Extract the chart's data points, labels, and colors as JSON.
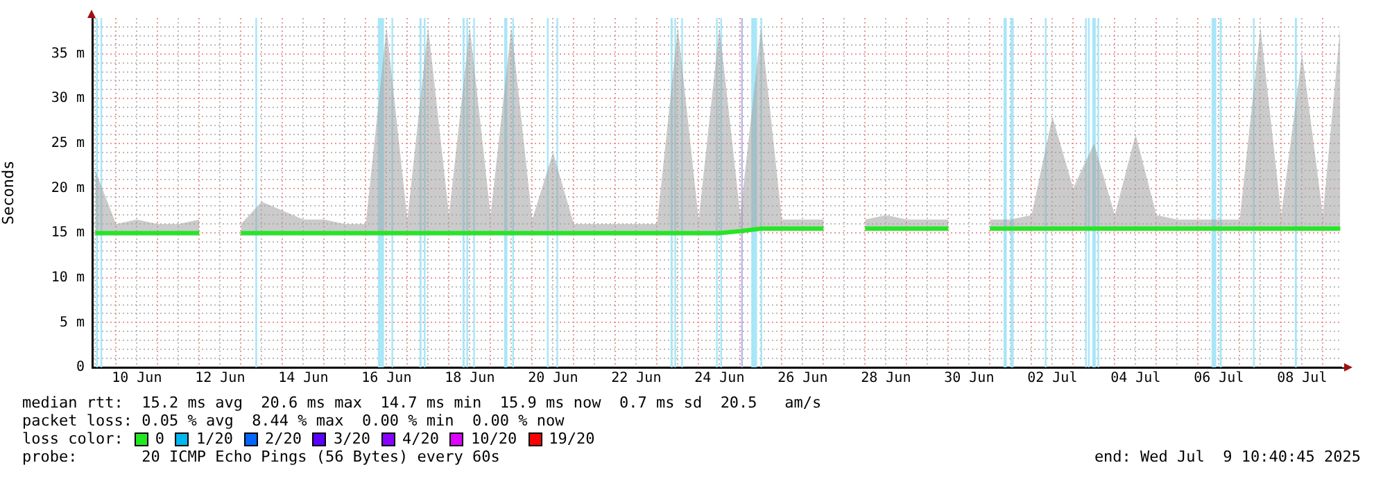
{
  "chart_data": {
    "type": "line",
    "ylabel": "Seconds",
    "legend_title": "loss color:",
    "legend": "bottom",
    "grid": true,
    "marker": "none",
    "line_style": "solid",
    "x": [
      "2025-06-09T12:00",
      "2025-06-10T00:00",
      "2025-06-10T12:00",
      "2025-06-11T00:00",
      "2025-06-11T12:00",
      "2025-06-12T00:00",
      "2025-06-12T12:00",
      "2025-06-13T00:00",
      "2025-06-13T12:00",
      "2025-06-14T00:00",
      "2025-06-14T12:00",
      "2025-06-15T00:00",
      "2025-06-15T12:00",
      "2025-06-16T00:00",
      "2025-06-16T12:00",
      "2025-06-17T00:00",
      "2025-06-17T12:00",
      "2025-06-18T00:00",
      "2025-06-18T12:00",
      "2025-06-19T00:00",
      "2025-06-19T12:00",
      "2025-06-20T00:00",
      "2025-06-20T12:00",
      "2025-06-21T00:00",
      "2025-06-21T12:00",
      "2025-06-22T00:00",
      "2025-06-22T12:00",
      "2025-06-23T00:00",
      "2025-06-23T12:00",
      "2025-06-24T00:00",
      "2025-06-24T12:00",
      "2025-06-25T00:00",
      "2025-06-25T12:00",
      "2025-06-26T00:00",
      "2025-06-26T12:00",
      "2025-06-27T00:00",
      "2025-06-27T12:00",
      "2025-06-28T00:00",
      "2025-06-28T12:00",
      "2025-06-29T00:00",
      "2025-06-29T12:00",
      "2025-06-30T00:00",
      "2025-06-30T12:00",
      "2025-07-01T00:00",
      "2025-07-01T12:00",
      "2025-07-02T00:00",
      "2025-07-02T12:00",
      "2025-07-03T00:00",
      "2025-07-03T12:00",
      "2025-07-04T00:00",
      "2025-07-04T12:00",
      "2025-07-05T00:00",
      "2025-07-05T12:00",
      "2025-07-06T00:00",
      "2025-07-06T12:00",
      "2025-07-07T00:00",
      "2025-07-07T12:00",
      "2025-07-08T00:00",
      "2025-07-08T12:00",
      "2025-07-09T00:00",
      "2025-07-09T10:00"
    ],
    "series": [
      {
        "name": "0",
        "color": "#22e822",
        "values": [
          15.0,
          15.0,
          15.0,
          15.0,
          15.0,
          15.0,
          null,
          15.0,
          15.0,
          15.0,
          15.0,
          15.0,
          15.0,
          15.0,
          15.0,
          15.0,
          15.0,
          15.0,
          15.0,
          15.0,
          15.0,
          15.0,
          15.0,
          15.0,
          15.0,
          15.0,
          15.0,
          15.0,
          15.0,
          15.0,
          15.0,
          15.2,
          15.5,
          15.5,
          15.5,
          15.5,
          null,
          15.5,
          15.5,
          15.5,
          15.5,
          15.5,
          null,
          15.5,
          15.5,
          15.5,
          15.5,
          15.5,
          15.5,
          15.5,
          15.5,
          15.5,
          15.5,
          15.5,
          15.5,
          15.5,
          15.5,
          15.5,
          15.5,
          15.5,
          15.5
        ],
        "lower": [
          14.7,
          14.7,
          14.7,
          14.7,
          14.7,
          14.7,
          null,
          14.7,
          14.7,
          14.7,
          14.7,
          14.7,
          14.7,
          14.7,
          14.7,
          14.7,
          14.7,
          14.7,
          14.7,
          14.7,
          14.7,
          14.7,
          14.7,
          14.7,
          14.7,
          14.7,
          14.7,
          14.7,
          14.7,
          14.7,
          14.7,
          15.0,
          15.2,
          15.2,
          15.2,
          15.2,
          null,
          15.2,
          15.2,
          15.2,
          15.2,
          15.2,
          null,
          15.2,
          15.2,
          15.2,
          15.2,
          15.2,
          15.2,
          15.2,
          15.2,
          15.2,
          15.2,
          15.2,
          15.2,
          15.2,
          15.2,
          15.2,
          15.2,
          15.2,
          15.2
        ],
        "upper": [
          22,
          16,
          16.5,
          16,
          16,
          16.5,
          null,
          16,
          18.5,
          17.5,
          16.5,
          16.5,
          16,
          16,
          38,
          16.5,
          38,
          17,
          38,
          17,
          38,
          16.5,
          24,
          16,
          16,
          16,
          16,
          16,
          38,
          16.5,
          38,
          17,
          38,
          16.5,
          16.5,
          16.5,
          null,
          16.5,
          17,
          16.5,
          16.5,
          16.5,
          null,
          16.5,
          16.5,
          17,
          28,
          20,
          25,
          17,
          26,
          17,
          16.5,
          16.5,
          16.5,
          16.5,
          38,
          17,
          35,
          17,
          38
        ]
      },
      {
        "name": "1/20",
        "color": "#00b8f0",
        "values": [
          null,
          null,
          null,
          null,
          null,
          null,
          null,
          null,
          null,
          null,
          null,
          null,
          null,
          null,
          null,
          null,
          null,
          null,
          null,
          null,
          null,
          null,
          null,
          null,
          null,
          null,
          null,
          null,
          null,
          null,
          null,
          null,
          null,
          null,
          null,
          null,
          null,
          null,
          null,
          null,
          null,
          null,
          null,
          null,
          null,
          null,
          null,
          null,
          null,
          null,
          null,
          null,
          null,
          null,
          null,
          null,
          null,
          null,
          null,
          null,
          null
        ]
      },
      {
        "name": "2/20",
        "color": "#0066ff",
        "values": [
          null,
          null,
          null,
          null,
          null,
          null,
          null,
          null,
          null,
          null,
          null,
          null,
          null,
          null,
          null,
          null,
          null,
          null,
          null,
          null,
          null,
          null,
          null,
          null,
          null,
          null,
          null,
          null,
          null,
          null,
          null,
          null,
          null,
          null,
          null,
          null,
          null,
          null,
          null,
          null,
          null,
          null,
          null,
          null,
          null,
          null,
          null,
          null,
          null,
          null,
          null,
          null,
          null,
          null,
          null,
          null,
          null,
          null,
          null,
          null,
          null
        ]
      },
      {
        "name": "3/20",
        "color": "#5a00ff",
        "values": [
          null,
          null,
          null,
          null,
          null,
          null,
          null,
          null,
          null,
          null,
          null,
          null,
          null,
          null,
          null,
          null,
          null,
          null,
          null,
          null,
          null,
          null,
          null,
          null,
          null,
          null,
          null,
          null,
          null,
          null,
          null,
          null,
          null,
          null,
          null,
          null,
          null,
          null,
          null,
          null,
          null,
          null,
          null,
          null,
          null,
          null,
          null,
          null,
          null,
          null,
          null,
          null,
          null,
          null,
          null,
          null,
          null,
          null,
          null,
          null,
          null
        ]
      },
      {
        "name": "4/20",
        "color": "#8a00ff",
        "values": [
          null,
          null,
          null,
          null,
          null,
          null,
          null,
          null,
          null,
          null,
          null,
          null,
          null,
          null,
          null,
          null,
          null,
          null,
          null,
          null,
          null,
          null,
          null,
          null,
          null,
          null,
          null,
          null,
          null,
          null,
          null,
          null,
          null,
          null,
          null,
          null,
          null,
          null,
          null,
          null,
          null,
          null,
          null,
          null,
          null,
          null,
          null,
          null,
          null,
          null,
          null,
          null,
          null,
          null,
          null,
          null,
          null,
          null,
          null,
          null,
          null
        ]
      },
      {
        "name": "10/20",
        "color": "#e000ff",
        "values": [
          null,
          null,
          null,
          null,
          null,
          null,
          null,
          null,
          null,
          null,
          null,
          null,
          null,
          null,
          null,
          null,
          null,
          null,
          null,
          null,
          null,
          null,
          null,
          null,
          null,
          null,
          null,
          null,
          null,
          null,
          null,
          null,
          null,
          null,
          null,
          null,
          null,
          null,
          null,
          null,
          null,
          null,
          null,
          null,
          null,
          null,
          null,
          null,
          null,
          null,
          null,
          null,
          null,
          null,
          null,
          null,
          null,
          null,
          null,
          null,
          null
        ]
      },
      {
        "name": "19/20",
        "color": "#ff0000",
        "values": [
          null,
          null,
          null,
          null,
          null,
          null,
          null,
          null,
          null,
          null,
          null,
          null,
          null,
          null,
          null,
          null,
          null,
          null,
          null,
          null,
          null,
          null,
          null,
          null,
          null,
          null,
          null,
          null,
          null,
          null,
          null,
          null,
          null,
          null,
          null,
          null,
          null,
          null,
          null,
          null,
          null,
          null,
          null,
          null,
          null,
          null,
          null,
          null,
          null,
          null,
          null,
          null,
          null,
          null,
          null,
          null,
          null,
          null,
          null,
          null,
          null
        ]
      }
    ],
    "bands": [
      {
        "axis": "x",
        "from": "2025-06-09T12:30",
        "to": "2025-06-09T13:30",
        "color": "#a8e6f8"
      },
      {
        "axis": "x",
        "from": "2025-06-09T15:00",
        "to": "2025-06-09T16:00",
        "color": "#a8e6f8"
      },
      {
        "axis": "x",
        "from": "2025-06-13T08:20",
        "to": "2025-06-13T09:20",
        "color": "#a8e6f8"
      },
      {
        "axis": "x",
        "from": "2025-06-16T07:00",
        "to": "2025-06-16T10:30",
        "color": "#a8e6f8"
      },
      {
        "axis": "x",
        "from": "2025-06-16T14:50",
        "to": "2025-06-16T15:40",
        "color": "#a8e6f8"
      },
      {
        "axis": "x",
        "from": "2025-06-17T07:00",
        "to": "2025-06-17T08:10",
        "color": "#a8e6f8"
      },
      {
        "axis": "x",
        "from": "2025-06-17T09:30",
        "to": "2025-06-17T10:30",
        "color": "#a8e6f8"
      },
      {
        "axis": "x",
        "from": "2025-06-18T07:50",
        "to": "2025-06-18T09:00",
        "color": "#a8e6f8"
      },
      {
        "axis": "x",
        "from": "2025-06-18T10:00",
        "to": "2025-06-18T11:00",
        "color": "#a8e6f8"
      },
      {
        "axis": "x",
        "from": "2025-06-18T14:00",
        "to": "2025-06-18T14:50",
        "color": "#a8e6f8"
      },
      {
        "axis": "x",
        "from": "2025-06-19T07:50",
        "to": "2025-06-19T09:40",
        "color": "#a8e6f8"
      },
      {
        "axis": "x",
        "from": "2025-06-19T12:30",
        "to": "2025-06-19T13:20",
        "color": "#a8e6f8"
      },
      {
        "axis": "x",
        "from": "2025-06-20T08:30",
        "to": "2025-06-20T09:20",
        "color": "#a8e6f8"
      },
      {
        "axis": "x",
        "from": "2025-06-20T14:00",
        "to": "2025-06-20T14:50",
        "color": "#a8e6f8"
      },
      {
        "axis": "x",
        "from": "2025-06-23T07:50",
        "to": "2025-06-23T09:00",
        "color": "#a8e6f8"
      },
      {
        "axis": "x",
        "from": "2025-06-23T10:00",
        "to": "2025-06-23T10:50",
        "color": "#a8e6f8"
      },
      {
        "axis": "x",
        "from": "2025-06-23T14:00",
        "to": "2025-06-23T14:50",
        "color": "#a8e6f8"
      },
      {
        "axis": "x",
        "from": "2025-06-24T10:00",
        "to": "2025-06-24T10:50",
        "color": "#a8e6f8"
      },
      {
        "axis": "x",
        "from": "2025-06-24T12:30",
        "to": "2025-06-24T13:20",
        "color": "#a8e6f8"
      },
      {
        "axis": "x",
        "from": "2025-06-25T00:30",
        "to": "2025-06-25T01:20",
        "color": "#b8b8f0"
      },
      {
        "axis": "x",
        "from": "2025-06-25T06:20",
        "to": "2025-06-25T09:40",
        "color": "#a8e6f8"
      },
      {
        "axis": "x",
        "from": "2025-06-25T11:40",
        "to": "2025-06-25T12:30",
        "color": "#a8e6f8"
      },
      {
        "axis": "x",
        "from": "2025-07-01T07:50",
        "to": "2025-07-01T09:40",
        "color": "#a8e6f8"
      },
      {
        "axis": "x",
        "from": "2025-07-01T11:50",
        "to": "2025-07-01T13:40",
        "color": "#a8e6f8"
      },
      {
        "axis": "x",
        "from": "2025-07-02T07:40",
        "to": "2025-07-02T08:30",
        "color": "#a8e6f8"
      },
      {
        "axis": "x",
        "from": "2025-07-03T06:50",
        "to": "2025-07-03T07:40",
        "color": "#a8e6f8"
      },
      {
        "axis": "x",
        "from": "2025-07-03T08:30",
        "to": "2025-07-03T09:20",
        "color": "#a8e6f8"
      },
      {
        "axis": "x",
        "from": "2025-07-03T11:00",
        "to": "2025-07-03T13:00",
        "color": "#a8e6f8"
      },
      {
        "axis": "x",
        "from": "2025-07-03T14:00",
        "to": "2025-07-03T14:50",
        "color": "#a8e6f8"
      },
      {
        "axis": "x",
        "from": "2025-07-06T07:50",
        "to": "2025-07-06T10:30",
        "color": "#a8e6f8"
      },
      {
        "axis": "x",
        "from": "2025-07-06T12:30",
        "to": "2025-07-06T13:40",
        "color": "#a8e6f8"
      },
      {
        "axis": "x",
        "from": "2025-07-07T07:40",
        "to": "2025-07-07T08:30",
        "color": "#a8e6f8"
      },
      {
        "axis": "x",
        "from": "2025-07-08T07:50",
        "to": "2025-07-08T09:00",
        "color": "#a8e6f8"
      }
    ],
    "xlim": [
      "2025-06-09T10:40",
      "2025-07-09T10:40"
    ],
    "xticks": [
      {
        "value": "2025-06-09T12:00",
        "label": null
      },
      {
        "value": "2025-06-10T00:00",
        "label": null
      },
      {
        "value": "2025-06-10T12:00",
        "label": "10 Jun"
      },
      {
        "value": "2025-06-11T00:00",
        "label": null
      },
      {
        "value": "2025-06-11T12:00",
        "label": null
      },
      {
        "value": "2025-06-12T00:00",
        "label": null
      },
      {
        "value": "2025-06-12T12:00",
        "label": "12 Jun"
      },
      {
        "value": "2025-06-13T00:00",
        "label": null
      },
      {
        "value": "2025-06-13T12:00",
        "label": null
      },
      {
        "value": "2025-06-14T00:00",
        "label": null
      },
      {
        "value": "2025-06-14T12:00",
        "label": "14 Jun"
      },
      {
        "value": "2025-06-15T00:00",
        "label": null
      },
      {
        "value": "2025-06-15T12:00",
        "label": null
      },
      {
        "value": "2025-06-16T00:00",
        "label": null
      },
      {
        "value": "2025-06-16T12:00",
        "label": "16 Jun"
      },
      {
        "value": "2025-06-17T00:00",
        "label": null
      },
      {
        "value": "2025-06-17T12:00",
        "label": null
      },
      {
        "value": "2025-06-18T00:00",
        "label": null
      },
      {
        "value": "2025-06-18T12:00",
        "label": "18 Jun"
      },
      {
        "value": "2025-06-19T00:00",
        "label": null
      },
      {
        "value": "2025-06-19T12:00",
        "label": null
      },
      {
        "value": "2025-06-20T00:00",
        "label": null
      },
      {
        "value": "2025-06-20T12:00",
        "label": "20 Jun"
      },
      {
        "value": "2025-06-21T00:00",
        "label": null
      },
      {
        "value": "2025-06-21T12:00",
        "label": null
      },
      {
        "value": "2025-06-22T00:00",
        "label": null
      },
      {
        "value": "2025-06-22T12:00",
        "label": "22 Jun"
      },
      {
        "value": "2025-06-23T00:00",
        "label": null
      },
      {
        "value": "2025-06-23T12:00",
        "label": null
      },
      {
        "value": "2025-06-24T00:00",
        "label": null
      },
      {
        "value": "2025-06-24T12:00",
        "label": "24 Jun"
      },
      {
        "value": "2025-06-25T00:00",
        "label": null
      },
      {
        "value": "2025-06-25T12:00",
        "label": null
      },
      {
        "value": "2025-06-26T00:00",
        "label": null
      },
      {
        "value": "2025-06-26T12:00",
        "label": "26 Jun"
      },
      {
        "value": "2025-06-27T00:00",
        "label": null
      },
      {
        "value": "2025-06-27T12:00",
        "label": null
      },
      {
        "value": "2025-06-28T00:00",
        "label": null
      },
      {
        "value": "2025-06-28T12:00",
        "label": "28 Jun"
      },
      {
        "value": "2025-06-29T00:00",
        "label": null
      },
      {
        "value": "2025-06-29T12:00",
        "label": null
      },
      {
        "value": "2025-06-30T00:00",
        "label": null
      },
      {
        "value": "2025-06-30T12:00",
        "label": "30 Jun"
      },
      {
        "value": "2025-07-01T00:00",
        "label": null
      },
      {
        "value": "2025-07-01T12:00",
        "label": null
      },
      {
        "value": "2025-07-02T00:00",
        "label": null
      },
      {
        "value": "2025-07-02T12:00",
        "label": "02 Jul"
      },
      {
        "value": "2025-07-03T00:00",
        "label": null
      },
      {
        "value": "2025-07-03T12:00",
        "label": null
      },
      {
        "value": "2025-07-04T00:00",
        "label": null
      },
      {
        "value": "2025-07-04T12:00",
        "label": "04 Jul"
      },
      {
        "value": "2025-07-05T00:00",
        "label": null
      },
      {
        "value": "2025-07-05T12:00",
        "label": null
      },
      {
        "value": "2025-07-06T00:00",
        "label": null
      },
      {
        "value": "2025-07-06T12:00",
        "label": "06 Jul"
      },
      {
        "value": "2025-07-07T00:00",
        "label": null
      },
      {
        "value": "2025-07-07T12:00",
        "label": null
      },
      {
        "value": "2025-07-08T00:00",
        "label": null
      },
      {
        "value": "2025-07-08T12:00",
        "label": "08 Jul"
      },
      {
        "value": "2025-07-09T00:00",
        "label": null
      }
    ],
    "ylim": [
      0,
      39
    ],
    "yticks": [
      0,
      {
        "value": 1,
        "label": null
      },
      {
        "value": 2,
        "label": null
      },
      {
        "value": 3,
        "label": null
      },
      {
        "value": 4,
        "label": null
      },
      {
        "value": 5,
        "label": "5 m"
      },
      {
        "value": 6,
        "label": null
      },
      {
        "value": 7,
        "label": null
      },
      {
        "value": 8,
        "label": null
      },
      {
        "value": 9,
        "label": null
      },
      {
        "value": 10,
        "label": "10 m"
      },
      {
        "value": 11,
        "label": null
      },
      {
        "value": 12,
        "label": null
      },
      {
        "value": 13,
        "label": null
      },
      {
        "value": 14,
        "label": null
      },
      {
        "value": 15,
        "label": "15 m"
      },
      {
        "value": 16,
        "label": null
      },
      {
        "value": 17,
        "label": null
      },
      {
        "value": 18,
        "label": null
      },
      {
        "value": 19,
        "label": null
      },
      {
        "value": 20,
        "label": "20 m"
      },
      {
        "value": 21,
        "label": null
      },
      {
        "value": 22,
        "label": null
      },
      {
        "value": 23,
        "label": null
      },
      {
        "value": 24,
        "label": null
      },
      {
        "value": 25,
        "label": "25 m"
      },
      {
        "value": 26,
        "label": null
      },
      {
        "value": 27,
        "label": null
      },
      {
        "value": 28,
        "label": null
      },
      {
        "value": 29,
        "label": null
      },
      {
        "value": 30,
        "label": "30 m"
      },
      {
        "value": 31,
        "label": null
      },
      {
        "value": 32,
        "label": null
      },
      {
        "value": 33,
        "label": null
      },
      {
        "value": 34,
        "label": null
      },
      {
        "value": 35,
        "label": "35 m"
      },
      {
        "value": 36,
        "label": null
      },
      {
        "value": 37,
        "label": null
      },
      {
        "value": 38,
        "label": null
      }
    ],
    "annotations": [
      "median rtt:  15.2 ms avg  20.6 ms max  14.7 ms min  15.9 ms now  0.7 ms sd  20.5   am/s",
      "packet loss: 0.05 % avg  8.44 % max  0.00 % min  0.00 % now",
      "probe:       20 ICMP Echo Pings (56 Bytes) every 60s",
      "end: Wed Jul  9 10:40:45 2025"
    ]
  }
}
